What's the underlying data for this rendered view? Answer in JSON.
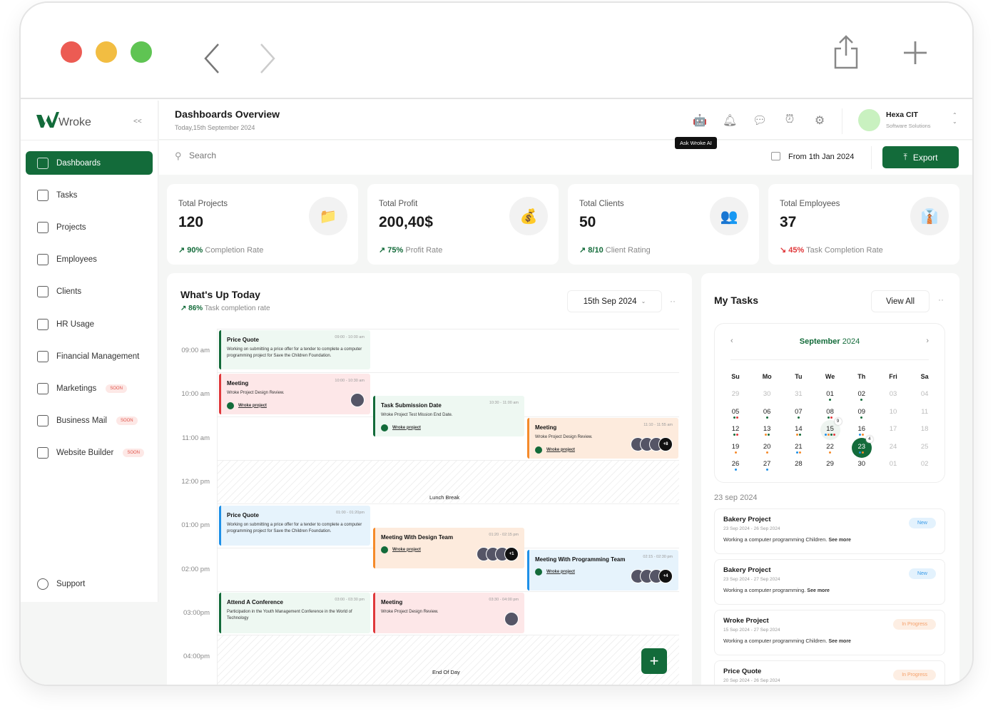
{
  "colors": {
    "brand": "#136b3a",
    "red": "#e0383b",
    "orange": "#f58a2a",
    "blue": "#1e90e8"
  },
  "window": {
    "controls": [
      "close",
      "minimize",
      "maximize"
    ],
    "back_icon": "chevron-left-icon",
    "forward_icon": "chevron-right-icon",
    "share_icon": "share-icon",
    "new_tab_icon": "plus-icon"
  },
  "sidebar": {
    "logo": "Wroke",
    "collapse": "<<",
    "items": [
      {
        "label": "Dashboards",
        "icon": "dashboard-icon",
        "active": true
      },
      {
        "label": "Tasks",
        "icon": "tasks-icon"
      },
      {
        "label": "Projects",
        "icon": "folder-icon"
      },
      {
        "label": "Employees",
        "icon": "employees-icon"
      },
      {
        "label": "Clients",
        "icon": "clients-icon"
      },
      {
        "label": "HR Usage",
        "icon": "hr-icon"
      },
      {
        "label": "Financial Management",
        "icon": "finance-icon"
      },
      {
        "label": "Marketings",
        "icon": "megaphone-icon",
        "badge": "SOON"
      },
      {
        "label": "Business Mail",
        "icon": "mail-icon",
        "badge": "SOON"
      },
      {
        "label": "Website Builder",
        "icon": "builder-icon",
        "badge": "SOON"
      }
    ],
    "support": "Support"
  },
  "header": {
    "title": "Dashboards Overview",
    "subtitle": "Today,15th September 2024",
    "tooltip": "Ask Wroke AI",
    "user_name": "Hexa CIT",
    "user_role": "Software Solutions"
  },
  "toolbar": {
    "search_placeholder": "Search",
    "date_range": "From 1th Jan 2024",
    "export": "Export"
  },
  "stats": [
    {
      "title": "Total Projects",
      "value": "120",
      "pct": "90%",
      "label": "Completion Rate",
      "trend": "up"
    },
    {
      "title": "Total Profit",
      "value": "200,40$",
      "pct": "75%",
      "label": "Profit Rate",
      "trend": "up"
    },
    {
      "title": "Total Clients",
      "value": "50",
      "pct": "8/10",
      "label": "Client Rating",
      "trend": "up"
    },
    {
      "title": "Total Employees",
      "value": "37",
      "pct": "45%",
      "label": "Task Completion Rate",
      "trend": "down"
    }
  ],
  "today": {
    "title": "What's Up Today",
    "pct": "86%",
    "label": "Task completion rate",
    "date": "15th Sep 2024",
    "hours": [
      "09:00 am",
      "10:00 am",
      "11:00 am",
      "12:00 pm",
      "01:00 pm",
      "02:00 pm",
      "03:00pm",
      "04:00pm"
    ],
    "lunch": "Lunch Break",
    "end": "End Of Day",
    "events": [
      {
        "title": "Price Quote",
        "time": "09:00 - 10:00 am",
        "desc": "Working on submitting a price offer for a tender to complete a computer programming project for Save the Children Foundation."
      },
      {
        "title": "Meeting",
        "time": "10:00 - 10:30 am",
        "desc": "Wroke Project Design Review.",
        "link": "Wroke project"
      },
      {
        "title": "Task Submission Date",
        "time": "10:30 - 11:00 am",
        "desc": "Wroke Project Test Mission End Date.",
        "link": "Wroke project"
      },
      {
        "title": "Meeting",
        "time": "11:10 - 11:55 am",
        "desc": "Wroke Project Design Review.",
        "link": "Wroke project",
        "more": "+8"
      },
      {
        "title": "Price Quote",
        "time": "01:00 - 01:20pm",
        "desc": "Working on submitting a price offer for a tender to complete a computer programming project for Save the Children Foundation."
      },
      {
        "title": "Meeting With Design Team",
        "time": "01:20 - 02:15 pm",
        "link": "Wroke project",
        "more": "+1"
      },
      {
        "title": "Meeting With Programming Team",
        "time": "02:15 - 02:30 pm",
        "link": "Wroke project",
        "more": "+4"
      },
      {
        "title": "Attend A Conference",
        "time": "03:00 - 03:30 pm",
        "desc": "Participation in the Youth Management Conference in the World of Technology"
      },
      {
        "title": "Meeting",
        "time": "03:30 - 04:00 pm",
        "desc": "Wroke Project Design Review."
      }
    ],
    "add": "+"
  },
  "tasks": {
    "title": "My Tasks",
    "view_all": "View All",
    "month": "September",
    "year": "2024",
    "weekdays": [
      "Su",
      "Mo",
      "Tu",
      "We",
      "Th",
      "Fri",
      "Sa"
    ],
    "days": [
      {
        "d": "29",
        "muted": true
      },
      {
        "d": "30",
        "muted": true
      },
      {
        "d": "31",
        "muted": true
      },
      {
        "d": "01",
        "dots": [
          "g"
        ]
      },
      {
        "d": "02",
        "dots": [
          "g"
        ]
      },
      {
        "d": "03",
        "muted": true
      },
      {
        "d": "04",
        "muted": true
      },
      {
        "d": "05",
        "dots": [
          "g",
          "r"
        ]
      },
      {
        "d": "06",
        "dots": [
          "g"
        ]
      },
      {
        "d": "07",
        "dots": [
          "g"
        ]
      },
      {
        "d": "08",
        "dots": [
          "g",
          "r"
        ]
      },
      {
        "d": "09",
        "dots": [
          "g"
        ]
      },
      {
        "d": "10",
        "muted": true
      },
      {
        "d": "11",
        "muted": true
      },
      {
        "d": "12",
        "dots": [
          "g",
          "r"
        ]
      },
      {
        "d": "13",
        "dots": [
          "o",
          "g"
        ]
      },
      {
        "d": "14",
        "dots": [
          "o",
          "g"
        ]
      },
      {
        "d": "15",
        "dots": [
          "b",
          "o",
          "g",
          "r"
        ],
        "count": "9",
        "today": true
      },
      {
        "d": "16",
        "dots": [
          "b",
          "o"
        ]
      },
      {
        "d": "17",
        "muted": true
      },
      {
        "d": "18",
        "muted": true
      },
      {
        "d": "19",
        "dots": [
          "o"
        ]
      },
      {
        "d": "20",
        "dots": [
          "o"
        ]
      },
      {
        "d": "21",
        "dots": [
          "b",
          "o"
        ]
      },
      {
        "d": "22",
        "dots": [
          "o"
        ]
      },
      {
        "d": "23",
        "dots": [
          "b",
          "o"
        ],
        "count": "4",
        "selected": true
      },
      {
        "d": "24",
        "muted": true
      },
      {
        "d": "25",
        "muted": true
      },
      {
        "d": "26",
        "dots": [
          "b"
        ]
      },
      {
        "d": "27",
        "dots": [
          "b"
        ]
      },
      {
        "d": "28"
      },
      {
        "d": "29"
      },
      {
        "d": "30"
      },
      {
        "d": "01",
        "muted": true
      },
      {
        "d": "02",
        "muted": true
      }
    ],
    "selected_date": "23 sep 2024",
    "list": [
      {
        "title": "Bakery Project",
        "dates": "23 Sep 2024 - 26 Sep 2024",
        "text": "Working a computer programming Children.",
        "more": "See more",
        "status": "New"
      },
      {
        "title": "Bakery Project",
        "dates": "23 Sep 2024 - 27 Sep 2024",
        "text": "Working a computer programming.",
        "more": "See more",
        "status": "New"
      },
      {
        "title": "Wroke Project",
        "dates": "15 Sep 2024 - 27 Sep 2024",
        "text": "Working a computer programming Children.",
        "more": "See more",
        "status": "In Progress"
      },
      {
        "title": "Price Quote",
        "dates": "20 Sep 2024 - 26 Sep 2024",
        "text": "",
        "more": "",
        "status": "In Progress"
      }
    ]
  }
}
